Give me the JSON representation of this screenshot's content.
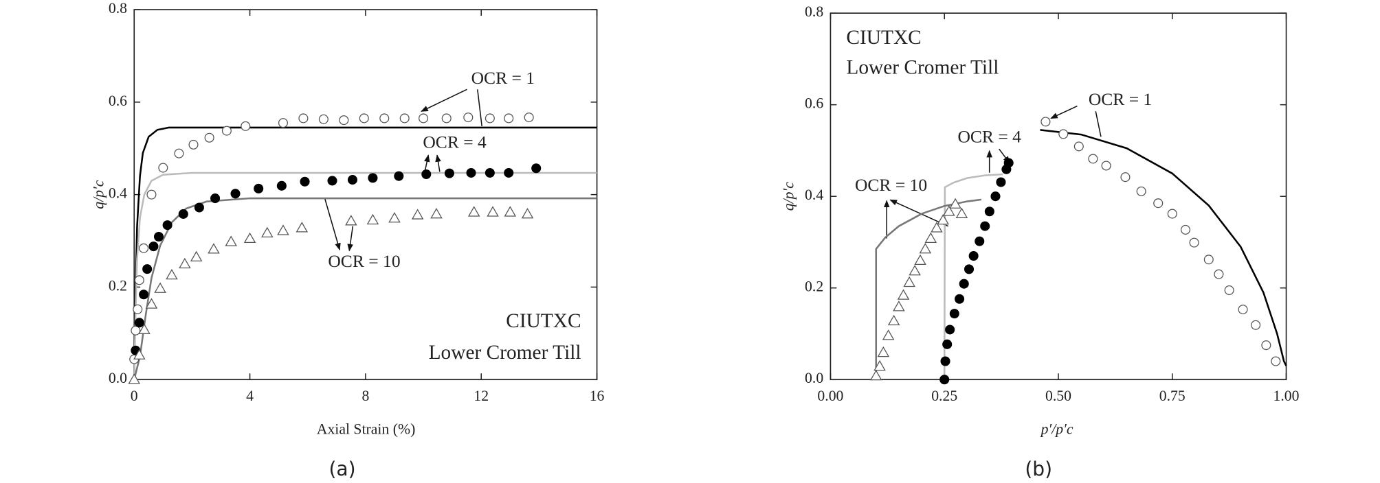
{
  "chart_data": [
    {
      "type": "scatter",
      "panel_label": "(a)",
      "xlabel": "Axial Strain (%)",
      "ylabel": "q/p′c",
      "xlim": [
        0,
        16
      ],
      "xticks": [
        0,
        4,
        8,
        12,
        16
      ],
      "ylim": [
        0,
        0.8
      ],
      "yticks": [
        {
          "value": 0,
          "label": "0.0"
        },
        0.2,
        0.4,
        0.6,
        0.8
      ],
      "texts": [
        "CIUTXC",
        "Lower Cromer Till"
      ],
      "annotations": [
        "OCR = 1",
        "OCR = 4",
        "OCR = 10"
      ],
      "series": [
        {
          "marker": "open-circle",
          "color": "#555555",
          "x": [
            0.0,
            0.05,
            0.12,
            0.18,
            0.33,
            0.6,
            1.0,
            1.55,
            2.05,
            2.6,
            3.2,
            3.85,
            5.15,
            5.85,
            6.55,
            7.25,
            7.95,
            8.65,
            9.35,
            10.0,
            10.8,
            11.55,
            12.3,
            12.95,
            13.65
          ],
          "values": [
            0.044,
            0.106,
            0.152,
            0.215,
            0.284,
            0.4,
            0.458,
            0.489,
            0.508,
            0.523,
            0.538,
            0.548,
            0.555,
            0.565,
            0.563,
            0.561,
            0.565,
            0.565,
            0.565,
            0.565,
            0.565,
            0.567,
            0.565,
            0.565,
            0.567
          ]
        },
        {
          "marker": "filled-circle",
          "color": "#000000",
          "x": [
            0.05,
            0.18,
            0.33,
            0.45,
            0.67,
            0.85,
            1.15,
            1.7,
            2.25,
            2.8,
            3.5,
            4.3,
            5.1,
            5.9,
            6.85,
            7.55,
            8.25,
            9.15,
            10.1,
            10.9,
            11.65,
            12.3,
            12.95,
            13.9
          ],
          "values": [
            0.063,
            0.123,
            0.184,
            0.239,
            0.288,
            0.309,
            0.334,
            0.358,
            0.372,
            0.392,
            0.402,
            0.413,
            0.419,
            0.428,
            0.43,
            0.432,
            0.436,
            0.44,
            0.444,
            0.446,
            0.447,
            0.447,
            0.447,
            0.457
          ]
        },
        {
          "marker": "open-triangle",
          "color": "#555555",
          "x": [
            0,
            0.18,
            0.35,
            0.6,
            0.9,
            1.3,
            1.75,
            2.15,
            2.75,
            3.35,
            4.0,
            4.6,
            5.15,
            5.8,
            7.5,
            8.25,
            9.0,
            9.8,
            10.45,
            11.75,
            12.4,
            13.0,
            13.6
          ],
          "values": [
            0.0,
            0.053,
            0.108,
            0.163,
            0.197,
            0.226,
            0.25,
            0.265,
            0.282,
            0.298,
            0.305,
            0.317,
            0.322,
            0.328,
            0.343,
            0.345,
            0.349,
            0.356,
            0.358,
            0.362,
            0.362,
            0.362,
            0.358
          ]
        },
        {
          "marker": "line",
          "color": "#000000",
          "x": [
            0,
            0.05,
            0.1,
            0.2,
            0.3,
            0.5,
            0.8,
            1.2,
            16
          ],
          "values": [
            0,
            0.2,
            0.33,
            0.44,
            0.49,
            0.525,
            0.54,
            0.545,
            0.545
          ]
        },
        {
          "marker": "line",
          "color": "#bbbbbb",
          "x": [
            0,
            0.05,
            0.1,
            0.2,
            0.35,
            0.6,
            1,
            2,
            16
          ],
          "values": [
            0,
            0.15,
            0.26,
            0.35,
            0.4,
            0.43,
            0.443,
            0.447,
            0.447
          ]
        },
        {
          "marker": "line",
          "color": "#777777",
          "x": [
            0,
            0.2,
            0.4,
            0.6,
            0.9,
            1.3,
            1.8,
            2.5,
            4,
            16
          ],
          "values": [
            0,
            0.05,
            0.14,
            0.22,
            0.29,
            0.34,
            0.37,
            0.385,
            0.392,
            0.392
          ]
        }
      ]
    },
    {
      "type": "scatter",
      "panel_label": "(b)",
      "xlabel": "p′/p′c",
      "ylabel": "q/p′c",
      "xlim": [
        0,
        1
      ],
      "xticks": [
        {
          "value": 0,
          "label": "0.00"
        },
        0.25,
        {
          "value": 0.5,
          "label": "0.50"
        },
        0.75,
        {
          "value": 1,
          "label": "1.00"
        }
      ],
      "ylim": [
        0,
        0.8
      ],
      "yticks": [
        {
          "value": 0,
          "label": "0.0"
        },
        0.2,
        0.4,
        0.6,
        0.8
      ],
      "texts": [
        "CIUTXC",
        "Lower Cromer Till"
      ],
      "annotations": [
        "OCR = 1",
        "OCR = 4",
        "OCR = 10"
      ],
      "series": [
        {
          "marker": "open-circle",
          "color": "#555555",
          "x": [
            0.472,
            0.511,
            0.545,
            0.576,
            0.605,
            0.647,
            0.682,
            0.719,
            0.75,
            0.779,
            0.798,
            0.83,
            0.852,
            0.875,
            0.905,
            0.933,
            0.956,
            0.977
          ],
          "values": [
            0.563,
            0.536,
            0.509,
            0.482,
            0.467,
            0.442,
            0.411,
            0.385,
            0.362,
            0.327,
            0.299,
            0.262,
            0.23,
            0.195,
            0.153,
            0.119,
            0.075,
            0.04
          ]
        },
        {
          "marker": "filled-circle",
          "color": "#000000",
          "x": [
            0.25,
            0.252,
            0.256,
            0.262,
            0.272,
            0.283,
            0.293,
            0.304,
            0.314,
            0.327,
            0.339,
            0.349,
            0.362,
            0.374,
            0.386,
            0.391
          ],
          "values": [
            0,
            0.04,
            0.077,
            0.109,
            0.144,
            0.176,
            0.209,
            0.241,
            0.27,
            0.302,
            0.335,
            0.367,
            0.4,
            0.431,
            0.459,
            0.473
          ]
        },
        {
          "marker": "open-triangle",
          "color": "#555555",
          "x": [
            0.1,
            0.108,
            0.116,
            0.127,
            0.139,
            0.15,
            0.16,
            0.173,
            0.185,
            0.197,
            0.208,
            0.22,
            0.233,
            0.247,
            0.26,
            0.274,
            0.288
          ],
          "values": [
            0.008,
            0.029,
            0.059,
            0.096,
            0.128,
            0.159,
            0.184,
            0.212,
            0.237,
            0.26,
            0.285,
            0.308,
            0.331,
            0.348,
            0.367,
            0.383,
            0.362
          ]
        },
        {
          "marker": "line",
          "color": "#000000",
          "x": [
            0.46,
            0.55,
            0.65,
            0.75,
            0.83,
            0.9,
            0.95,
            0.98,
            0.995,
            1.0
          ],
          "values": [
            0.545,
            0.535,
            0.505,
            0.45,
            0.38,
            0.29,
            0.19,
            0.1,
            0.04,
            0.03
          ]
        },
        {
          "marker": "line",
          "color": "#bbbbbb",
          "x": [
            0.25,
            0.25,
            0.251,
            0.27,
            0.3,
            0.34,
            0.378
          ],
          "values": [
            0,
            0.02,
            0.42,
            0.43,
            0.44,
            0.446,
            0.448
          ]
        },
        {
          "marker": "line",
          "color": "#777777",
          "x": [
            0.1,
            0.1,
            0.12,
            0.15,
            0.2,
            0.25,
            0.3,
            0.331
          ],
          "values": [
            0,
            0.285,
            0.31,
            0.335,
            0.362,
            0.379,
            0.389,
            0.393
          ]
        }
      ]
    }
  ]
}
